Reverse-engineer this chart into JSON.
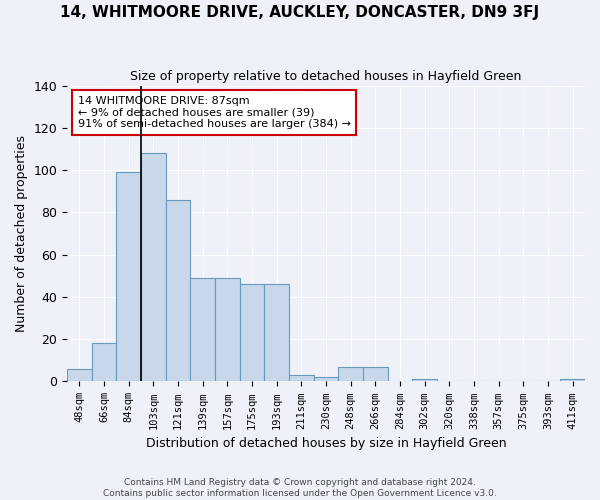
{
  "title": "14, WHITMOORE DRIVE, AUCKLEY, DONCASTER, DN9 3FJ",
  "subtitle": "Size of property relative to detached houses in Hayfield Green",
  "xlabel": "Distribution of detached houses by size in Hayfield Green",
  "ylabel": "Number of detached properties",
  "bar_color": "#c8d8ea",
  "bar_edge_color": "#6699bb",
  "background_color": "#eef2f8",
  "grid_color": "#ffffff",
  "categories": [
    "48sqm",
    "66sqm",
    "84sqm",
    "103sqm",
    "121sqm",
    "139sqm",
    "157sqm",
    "175sqm",
    "193sqm",
    "211sqm",
    "230sqm",
    "248sqm",
    "266sqm",
    "284sqm",
    "302sqm",
    "320sqm",
    "338sqm",
    "357sqm",
    "375sqm",
    "393sqm",
    "411sqm"
  ],
  "values": [
    6,
    18,
    99,
    108,
    86,
    49,
    49,
    46,
    46,
    3,
    2,
    7,
    7,
    0,
    1,
    0,
    0,
    0,
    0,
    0,
    1
  ],
  "vline_index": 2,
  "vline_color": "#000000",
  "annotation_text": "14 WHITMOORE DRIVE: 87sqm\n← 9% of detached houses are smaller (39)\n91% of semi-detached houses are larger (384) →",
  "annotation_box_color": "#ffffff",
  "annotation_box_edge": "#cc0000",
  "footnote1": "Contains HM Land Registry data © Crown copyright and database right 2024.",
  "footnote2": "Contains public sector information licensed under the Open Government Licence v3.0.",
  "ylim": [
    0,
    140
  ],
  "yticks": [
    0,
    20,
    40,
    60,
    80,
    100,
    120,
    140
  ]
}
